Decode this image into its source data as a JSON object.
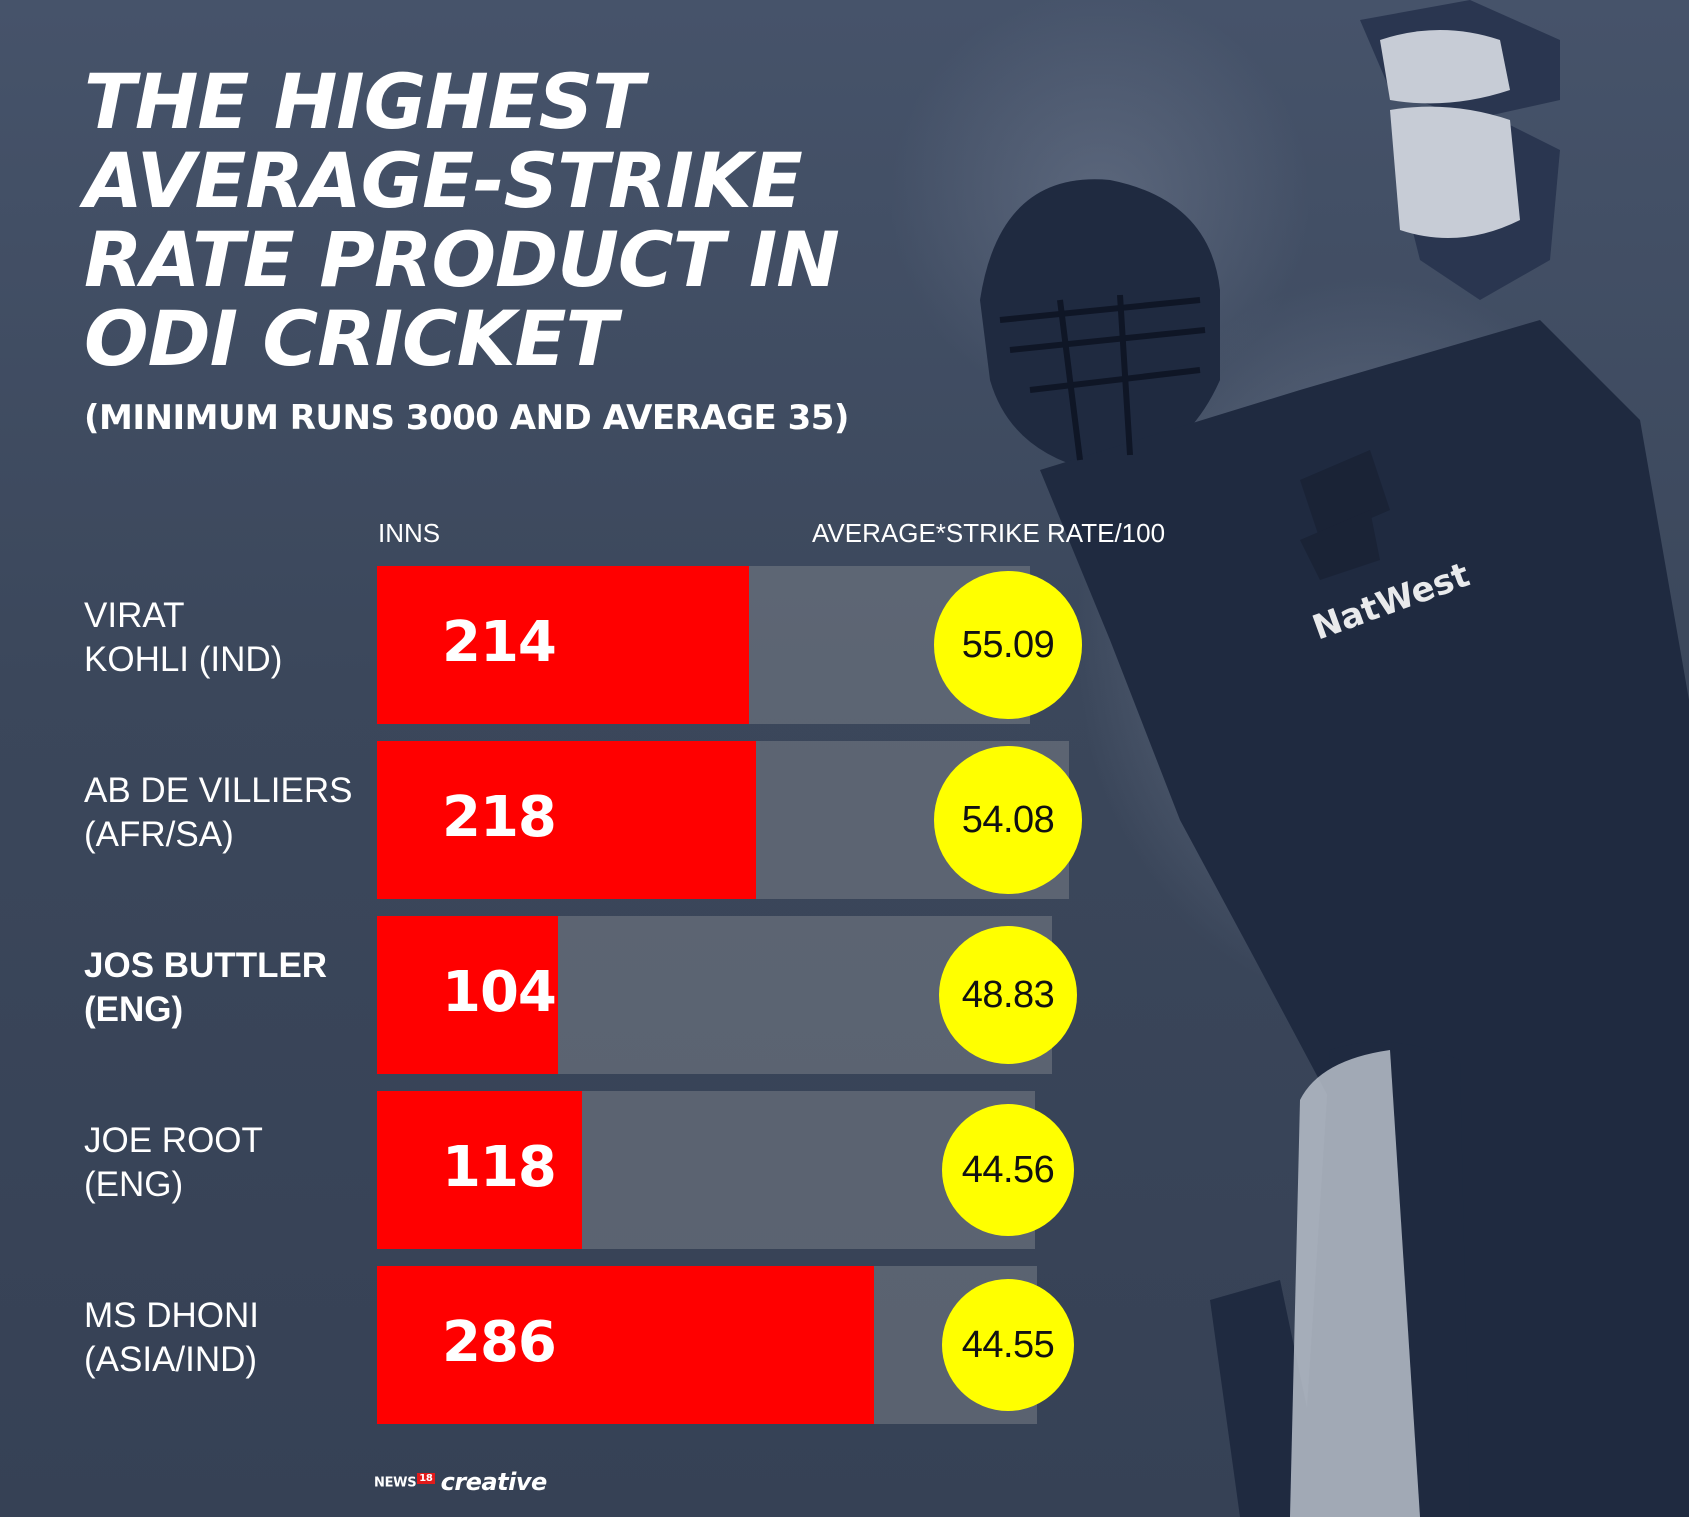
{
  "title_lines": [
    "THE HIGHEST",
    "AVERAGE-STRIKE",
    "RATE PRODUCT IN",
    "ODI CRICKET"
  ],
  "subtitle": "(MINIMUM RUNS 3000 AND AVERAGE 35)",
  "colors": {
    "bar": "#ff0000",
    "circle": "#ffff00",
    "background": "#3f4b60"
  },
  "logo": {
    "brand": "NEWS",
    "brand_number": "18",
    "word": "creative"
  },
  "chart_data": {
    "type": "bar",
    "orientation": "horizontal",
    "columns": [
      "INNS",
      "AVERAGE*STRIKE RATE/100"
    ],
    "inns_scale_max": 286,
    "rows": [
      {
        "player_line1": "VIRAT",
        "player_line2": "KOHLI (IND)",
        "highlight": false,
        "inns": 214,
        "inns_label": "214",
        "avg_sr": 55.09,
        "avg_sr_label": "55.09"
      },
      {
        "player_line1": "AB DE VILLIERS",
        "player_line2": "(AFR/SA)",
        "highlight": false,
        "inns": 218,
        "inns_label": "218",
        "avg_sr": 54.08,
        "avg_sr_label": "54.08"
      },
      {
        "player_line1": "JOS BUTTLER",
        "player_line2": "(ENG)",
        "highlight": true,
        "inns": 104,
        "inns_label": "104",
        "avg_sr": 48.83,
        "avg_sr_label": "48.83"
      },
      {
        "player_line1": "JOE ROOT",
        "player_line2": "(ENG)",
        "highlight": false,
        "inns": 118,
        "inns_label": "118",
        "avg_sr": 44.56,
        "avg_sr_label": "44.56"
      },
      {
        "player_line1": "MS DHONI",
        "player_line2": "(ASIA/IND)",
        "highlight": false,
        "inns": 286,
        "inns_label": "286",
        "avg_sr": 44.55,
        "avg_sr_label": "44.55"
      }
    ]
  }
}
